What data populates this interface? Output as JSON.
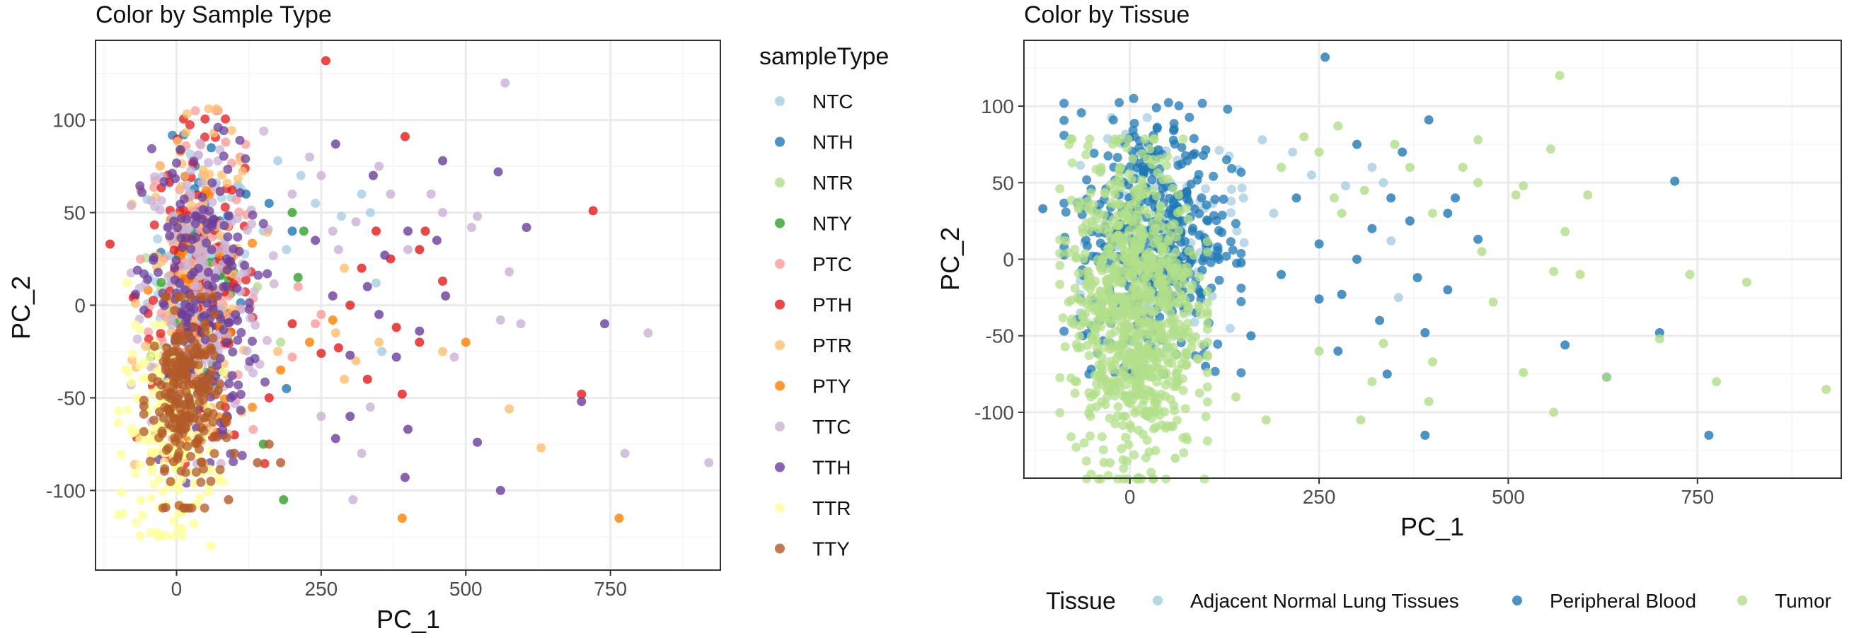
{
  "colors": {
    "NTC": "#a6cee3",
    "NTH": "#1f78b4",
    "NTR": "#b2df8a",
    "NTY": "#33a02c",
    "PTC": "#fb9a99",
    "PTH": "#e31a1c",
    "PTR": "#fdbf6f",
    "PTY": "#ff7f00",
    "TTC": "#cab2d6",
    "TTH": "#6a3d9a",
    "TTR": "#ffff99",
    "TTY": "#b15928",
    "Adjacent Normal Lung Tissues": "#a6cee3",
    "Peripheral Blood": "#1f78b4",
    "Tumor": "#b2df8a",
    "panel_border": "#333333",
    "grid_major": "#ebebeb",
    "grid_minor": "#f5f5f5"
  },
  "chart_data": [
    {
      "type": "scatter",
      "title": "Color by Sample Type",
      "xlabel": "PC_1",
      "ylabel": "PC_2",
      "xlim": [
        -140,
        940
      ],
      "ylim": [
        -143,
        143
      ],
      "xticks": [
        0,
        250,
        500,
        750
      ],
      "yticks": [
        -100,
        -50,
        0,
        50,
        100
      ],
      "grid": true,
      "legend": {
        "title": "sampleType",
        "position": "right",
        "entries": [
          "NTC",
          "NTH",
          "NTR",
          "NTY",
          "PTC",
          "PTH",
          "PTR",
          "PTY",
          "TTC",
          "TTH",
          "TTR",
          "TTY"
        ]
      },
      "series": [
        {
          "name": "NTC",
          "cluster": {
            "n": 70,
            "x": [
              -40,
              120
            ],
            "y": [
              -40,
              75
            ]
          },
          "points": [
            [
              175,
              78
            ],
            [
              215,
              70
            ],
            [
              285,
              48
            ],
            [
              320,
              60
            ],
            [
              335,
              50
            ],
            [
              345,
              12
            ],
            [
              355,
              -25
            ],
            [
              150,
              40
            ],
            [
              190,
              30
            ],
            [
              240,
              55
            ]
          ]
        },
        {
          "name": "NTH",
          "cluster": {
            "n": 35,
            "x": [
              -30,
              100
            ],
            "y": [
              -40,
              80
            ]
          },
          "points": [
            [
              60,
              85
            ],
            [
              190,
              -45
            ],
            [
              160,
              55
            ],
            [
              120,
              60
            ],
            [
              200,
              40
            ]
          ]
        },
        {
          "name": "NTR",
          "cluster": {
            "n": 25,
            "x": [
              -40,
              60
            ],
            "y": [
              -30,
              40
            ]
          },
          "points": [
            [
              100,
              30
            ],
            [
              140,
              10
            ],
            [
              180,
              -20
            ]
          ]
        },
        {
          "name": "NTY",
          "cluster": {
            "n": 35,
            "x": [
              -30,
              120
            ],
            "y": [
              -60,
              60
            ]
          },
          "points": [
            [
              185,
              -105
            ],
            [
              200,
              50
            ],
            [
              220,
              40
            ],
            [
              150,
              -75
            ],
            [
              210,
              15
            ]
          ]
        },
        {
          "name": "PTC",
          "cluster": {
            "n": 120,
            "x": [
              -40,
              110
            ],
            "y": [
              -60,
              90
            ]
          },
          "points": [
            [
              85,
              88
            ],
            [
              110,
              80
            ],
            [
              210,
              10
            ],
            [
              250,
              -5
            ],
            [
              240,
              -10
            ],
            [
              200,
              -28
            ]
          ]
        },
        {
          "name": "PTH",
          "cluster": {
            "n": 110,
            "x": [
              -60,
              130
            ],
            "y": [
              -70,
              85
            ]
          },
          "points": [
            [
              -115,
              33
            ],
            [
              258,
              132
            ],
            [
              395,
              91
            ],
            [
              720,
              51
            ],
            [
              700,
              -48
            ],
            [
              345,
              40
            ],
            [
              320,
              20
            ],
            [
              380,
              -12
            ],
            [
              390,
              -48
            ],
            [
              430,
              40
            ],
            [
              420,
              30
            ],
            [
              460,
              13
            ],
            [
              370,
              25
            ],
            [
              300,
              0
            ],
            [
              280,
              -23
            ],
            [
              330,
              -40
            ],
            [
              250,
              -26
            ],
            [
              200,
              -10
            ],
            [
              420,
              -20
            ],
            [
              160,
              -50
            ],
            [
              100,
              -70
            ]
          ]
        },
        {
          "name": "PTR",
          "cluster": {
            "n": 110,
            "x": [
              -50,
              130
            ],
            "y": [
              -70,
              90
            ]
          },
          "points": [
            [
              65,
              93
            ],
            [
              175,
              -25
            ],
            [
              275,
              -15
            ],
            [
              310,
              -30
            ],
            [
              290,
              -40
            ],
            [
              350,
              -20
            ],
            [
              460,
              -25
            ],
            [
              575,
              -56
            ],
            [
              630,
              -77
            ],
            [
              290,
              20
            ]
          ]
        },
        {
          "name": "PTY",
          "cluster": {
            "n": 45,
            "x": [
              -30,
              110
            ],
            "y": [
              -60,
              70
            ]
          },
          "points": [
            [
              500,
              -20
            ],
            [
              390,
              -115
            ],
            [
              765,
              -115
            ],
            [
              270,
              -8
            ],
            [
              180,
              -35
            ],
            [
              230,
              -20
            ]
          ]
        },
        {
          "name": "TTC",
          "cluster": {
            "n": 170,
            "x": [
              -50,
              140
            ],
            "y": [
              -70,
              85
            ]
          },
          "points": [
            [
              568,
              120
            ],
            [
              510,
              42
            ],
            [
              520,
              48
            ],
            [
              575,
              18
            ],
            [
              595,
              -10
            ],
            [
              560,
              -8
            ],
            [
              480,
              -28
            ],
            [
              775,
              -80
            ],
            [
              815,
              -15
            ],
            [
              920,
              -85
            ],
            [
              305,
              -105
            ],
            [
              335,
              -55
            ],
            [
              460,
              50
            ],
            [
              440,
              60
            ],
            [
              400,
              30
            ],
            [
              370,
              60
            ],
            [
              310,
              45
            ],
            [
              270,
              40
            ],
            [
              250,
              70
            ],
            [
              230,
              80
            ],
            [
              200,
              60
            ],
            [
              350,
              75
            ],
            [
              280,
              30
            ],
            [
              250,
              -60
            ],
            [
              320,
              -80
            ]
          ]
        },
        {
          "name": "TTH",
          "cluster": {
            "n": 190,
            "x": [
              -50,
              130
            ],
            "y": [
              -80,
              80
            ]
          },
          "points": [
            [
              275,
              87
            ],
            [
              340,
              70
            ],
            [
              460,
              78
            ],
            [
              556,
              72
            ],
            [
              605,
              42
            ],
            [
              740,
              -10
            ],
            [
              700,
              -52
            ],
            [
              560,
              -100
            ],
            [
              520,
              -74
            ],
            [
              400,
              -67
            ],
            [
              395,
              -93
            ],
            [
              275,
              -72
            ],
            [
              465,
              5
            ],
            [
              420,
              -14
            ],
            [
              350,
              -5
            ],
            [
              330,
              10
            ],
            [
              380,
              -28
            ],
            [
              300,
              -27
            ],
            [
              360,
              27
            ],
            [
              400,
              40
            ],
            [
              450,
              35
            ],
            [
              300,
              -60
            ],
            [
              240,
              35
            ],
            [
              270,
              5
            ]
          ]
        },
        {
          "name": "TTR",
          "cluster": {
            "n": 200,
            "x": [
              -80,
              60
            ],
            "y": [
              -115,
              -20
            ]
          },
          "points": [
            [
              -85,
              12
            ],
            [
              60,
              -130
            ],
            [
              30,
              -118
            ],
            [
              10,
              -112
            ]
          ]
        },
        {
          "name": "TTY",
          "cluster": {
            "n": 230,
            "x": [
              -40,
              70
            ],
            "y": [
              -100,
              -5
            ]
          },
          "points": [
            [
              90,
              -105
            ],
            [
              180,
              -85
            ],
            [
              140,
              -85
            ],
            [
              100,
              -80
            ],
            [
              160,
              -75
            ]
          ]
        }
      ]
    },
    {
      "type": "scatter",
      "title": "Color by Tissue",
      "xlabel": "PC_1",
      "ylabel": "PC_2",
      "xlim": [
        -140,
        940
      ],
      "ylim": [
        -143,
        143
      ],
      "xticks": [
        0,
        250,
        500,
        750
      ],
      "yticks": [
        -100,
        -50,
        0,
        50,
        100
      ],
      "grid": true,
      "legend": {
        "title": "Tissue",
        "position": "bottom",
        "entries": [
          "Adjacent Normal Lung Tissues",
          "Peripheral Blood",
          "Tumor"
        ]
      },
      "series": [
        {
          "name": "Adjacent Normal Lung Tissues",
          "cluster": {
            "n": 140,
            "x": [
              -40,
              130
            ],
            "y": [
              -45,
              80
            ]
          },
          "points": [
            [
              175,
              78
            ],
            [
              215,
              70
            ],
            [
              285,
              48
            ],
            [
              320,
              60
            ],
            [
              335,
              50
            ],
            [
              345,
              12
            ],
            [
              355,
              -25
            ],
            [
              150,
              40
            ],
            [
              190,
              30
            ],
            [
              240,
              55
            ]
          ]
        },
        {
          "name": "Peripheral Blood",
          "cluster": {
            "n": 420,
            "x": [
              -60,
              120
            ],
            "y": [
              -60,
              90
            ]
          },
          "points": [
            [
              -115,
              33
            ],
            [
              258,
              132
            ],
            [
              395,
              91
            ],
            [
              720,
              51
            ],
            [
              700,
              -48
            ],
            [
              765,
              -115
            ],
            [
              630,
              -77
            ],
            [
              575,
              -56
            ],
            [
              390,
              -115
            ],
            [
              345,
              40
            ],
            [
              320,
              20
            ],
            [
              380,
              -12
            ],
            [
              390,
              -48
            ],
            [
              430,
              40
            ],
            [
              420,
              30
            ],
            [
              460,
              13
            ],
            [
              370,
              25
            ],
            [
              300,
              0
            ],
            [
              280,
              -23
            ],
            [
              330,
              -40
            ],
            [
              250,
              -26
            ],
            [
              200,
              -10
            ],
            [
              420,
              -20
            ],
            [
              160,
              -50
            ],
            [
              100,
              -70
            ],
            [
              275,
              -60
            ],
            [
              340,
              -75
            ],
            [
              360,
              70
            ],
            [
              300,
              75
            ],
            [
              220,
              40
            ],
            [
              250,
              10
            ]
          ]
        },
        {
          "name": "Tumor",
          "cluster": {
            "n": 850,
            "x": [
              -70,
              80
            ],
            "y": [
              -125,
              60
            ]
          },
          "points": [
            [
              568,
              120
            ],
            [
              510,
              42
            ],
            [
              520,
              48
            ],
            [
              575,
              18
            ],
            [
              595,
              -10
            ],
            [
              560,
              -8
            ],
            [
              480,
              -28
            ],
            [
              775,
              -80
            ],
            [
              815,
              -15
            ],
            [
              920,
              -85
            ],
            [
              305,
              -105
            ],
            [
              335,
              -55
            ],
            [
              460,
              50
            ],
            [
              440,
              60
            ],
            [
              400,
              30
            ],
            [
              370,
              60
            ],
            [
              310,
              45
            ],
            [
              270,
              40
            ],
            [
              250,
              70
            ],
            [
              230,
              80
            ],
            [
              200,
              60
            ],
            [
              350,
              75
            ],
            [
              280,
              30
            ],
            [
              250,
              -60
            ],
            [
              320,
              -80
            ],
            [
              460,
              78
            ],
            [
              556,
              72
            ],
            [
              605,
              42
            ],
            [
              740,
              -10
            ],
            [
              700,
              -52
            ],
            [
              560,
              -100
            ],
            [
              520,
              -74
            ],
            [
              400,
              -67
            ],
            [
              395,
              -93
            ],
            [
              465,
              5
            ],
            [
              630,
              -77
            ],
            [
              275,
              87
            ],
            [
              180,
              -105
            ],
            [
              -85,
              12
            ],
            [
              60,
              -130
            ],
            [
              140,
              -90
            ]
          ]
        }
      ]
    }
  ]
}
